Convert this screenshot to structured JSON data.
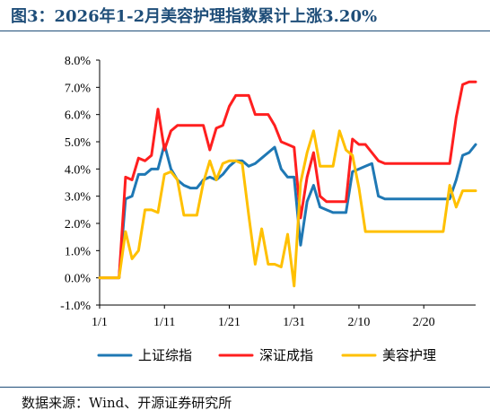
{
  "title": "图3：2026年1-2月美容护理指数累计上涨3.20%",
  "source": "数据来源：Wind、开源证券研究所",
  "colors": {
    "title": "#1f4e79",
    "series_blue": "#1f78b4",
    "series_red": "#ff1f1f",
    "series_yellow": "#ffc000"
  },
  "chart_data": {
    "type": "line",
    "title": "",
    "xlabel": "",
    "ylabel": "",
    "ylim": [
      -1.0,
      8.0
    ],
    "y_ticks": [
      "8.0%",
      "7.0%",
      "6.0%",
      "5.0%",
      "4.0%",
      "3.0%",
      "2.0%",
      "1.0%",
      "0.0%",
      "-1.0%"
    ],
    "x_ticks": [
      "1/1",
      "1/11",
      "1/21",
      "1/31",
      "2/10",
      "2/20"
    ],
    "x_tick_positions": [
      1,
      11,
      21,
      31,
      41,
      51
    ],
    "x": [
      1,
      2,
      3,
      4,
      5,
      6,
      7,
      8,
      9,
      10,
      11,
      12,
      13,
      14,
      15,
      16,
      17,
      18,
      19,
      20,
      21,
      22,
      23,
      24,
      25,
      26,
      27,
      28,
      29,
      30,
      31,
      32,
      33,
      34,
      35,
      36,
      37,
      38,
      39,
      40,
      41,
      42,
      43,
      44,
      45,
      46,
      47,
      48,
      49,
      50,
      51,
      52,
      53,
      54,
      55,
      56,
      57,
      58,
      59
    ],
    "legend_position": "bottom",
    "series": [
      {
        "name": "上证综指",
        "color": "#1f78b4",
        "values": [
          0.0,
          0.0,
          0.0,
          0.0,
          2.9,
          3.0,
          3.8,
          3.8,
          4.0,
          4.0,
          4.9,
          4.0,
          3.6,
          3.4,
          3.3,
          3.3,
          3.6,
          3.7,
          3.6,
          3.8,
          4.1,
          4.3,
          4.3,
          4.1,
          4.2,
          4.4,
          4.6,
          4.8,
          4.0,
          3.7,
          3.7,
          1.2,
          2.8,
          3.4,
          2.6,
          2.5,
          2.4,
          2.4,
          2.4,
          3.9,
          4.0,
          4.1,
          4.2,
          3.0,
          2.9,
          2.9,
          2.9,
          2.9,
          2.9,
          2.9,
          2.9,
          2.9,
          2.9,
          2.9,
          2.9,
          3.6,
          4.5,
          4.6,
          4.9
        ]
      },
      {
        "name": "深证成指",
        "color": "#ff1f1f",
        "values": [
          0.0,
          0.0,
          0.0,
          0.0,
          3.7,
          3.6,
          4.4,
          4.3,
          4.5,
          6.2,
          4.7,
          5.4,
          5.6,
          5.6,
          5.6,
          5.6,
          5.6,
          4.7,
          5.5,
          5.6,
          6.3,
          6.7,
          6.7,
          6.7,
          6.0,
          6.0,
          6.0,
          5.6,
          5.0,
          4.9,
          4.8,
          2.2,
          3.7,
          4.6,
          3.0,
          2.8,
          2.8,
          2.8,
          2.8,
          5.1,
          4.9,
          4.9,
          4.6,
          4.3,
          4.2,
          4.2,
          4.2,
          4.2,
          4.2,
          4.2,
          4.2,
          4.2,
          4.2,
          4.2,
          4.2,
          5.9,
          7.1,
          7.2,
          7.2
        ]
      },
      {
        "name": "美容护理",
        "color": "#ffc000",
        "values": [
          0.0,
          0.0,
          0.0,
          0.0,
          1.7,
          0.7,
          1.0,
          2.5,
          2.5,
          2.4,
          3.8,
          3.9,
          3.6,
          2.3,
          2.3,
          2.3,
          3.5,
          4.3,
          3.6,
          4.2,
          4.3,
          4.3,
          4.2,
          2.3,
          0.5,
          1.8,
          0.5,
          0.5,
          0.4,
          1.6,
          -0.3,
          3.5,
          4.6,
          5.4,
          4.1,
          4.1,
          4.1,
          5.4,
          4.7,
          4.5,
          3.3,
          1.7,
          1.7,
          1.7,
          1.7,
          1.7,
          1.7,
          1.7,
          1.7,
          1.7,
          1.7,
          1.7,
          1.7,
          1.7,
          3.4,
          2.6,
          3.2,
          3.2,
          3.2
        ]
      }
    ]
  }
}
